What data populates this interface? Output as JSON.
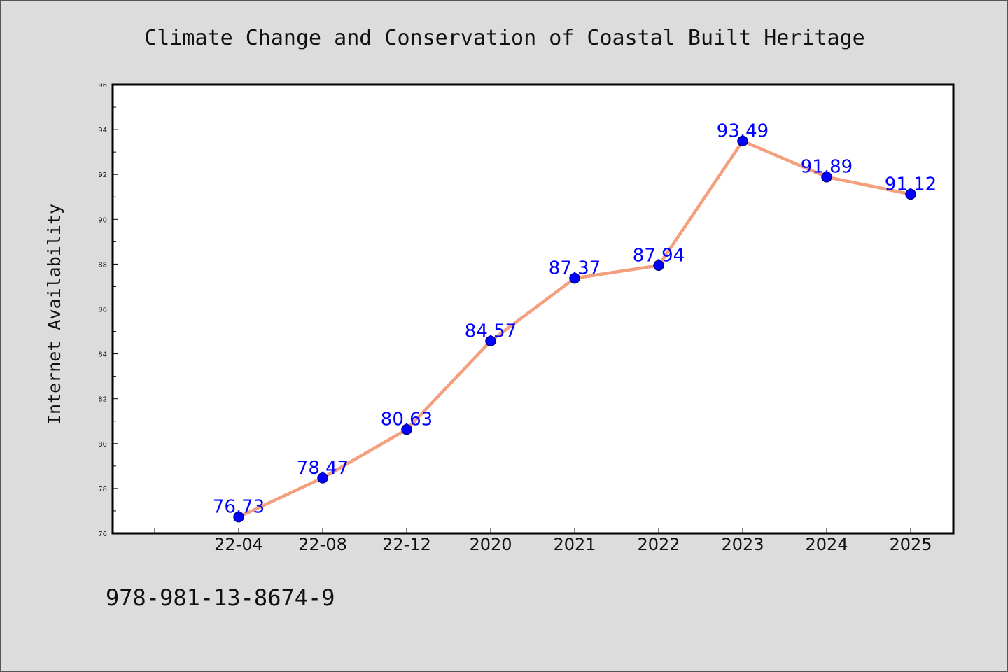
{
  "chart_data": {
    "type": "line",
    "title": "Climate Change and Conservation of Coastal Built Heritage",
    "xlabel": "",
    "ylabel": "Internet Availability",
    "categories": [
      "22-04",
      "22-08",
      "22-12",
      "2020",
      "2021",
      "2022",
      "2023",
      "2024",
      "2025"
    ],
    "series": [
      {
        "values": [
          76.73,
          78.47,
          80.63,
          84.57,
          87.37,
          87.94,
          93.49,
          91.89,
          91.12
        ],
        "labels": [
          "76.73",
          "78.47",
          "80.63",
          "84.57",
          "87.37",
          "87.94",
          "93.49",
          "91.89",
          "91.12"
        ]
      }
    ],
    "ylim": [
      76,
      96
    ],
    "yticks": [
      76,
      78,
      80,
      82,
      84,
      86,
      88,
      90,
      92,
      94,
      96
    ],
    "ytick_labels": [
      "76",
      "78",
      "80",
      "82",
      "84",
      "86",
      "88",
      "90",
      "92",
      "94",
      "96"
    ],
    "grid": false,
    "legend": "none",
    "colors": {
      "line": "#f4a07e",
      "marker": "#0000ff",
      "marker_edge": "#00008b",
      "label": "#0000ff",
      "axes_bg": "#ffffff",
      "figure_bg": "#dcdcdc"
    }
  },
  "footer": {
    "text": "978-981-13-8674-9"
  }
}
